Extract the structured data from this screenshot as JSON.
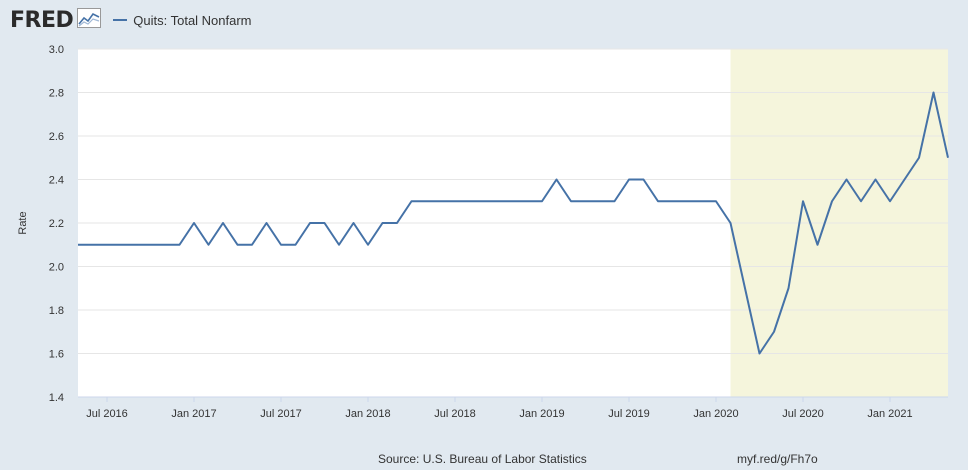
{
  "header": {
    "logo_text": "FRED",
    "logo_icon": "trend-line-icon"
  },
  "colors": {
    "background": "#e1e9f0",
    "plot_background": "#ffffff",
    "recession_shading": "#f5f5dc",
    "series_line": "#4572a7",
    "grid": "#e6e6e6"
  },
  "chart_data": {
    "type": "line",
    "title": "",
    "xlabel": "",
    "ylabel": "Rate",
    "ylim": [
      1.4,
      3.0
    ],
    "y_ticks": [
      "1.4",
      "1.6",
      "1.8",
      "2.0",
      "2.2",
      "2.4",
      "2.6",
      "2.8",
      "3.0"
    ],
    "x_ticks": [
      "Jul 2016",
      "Jan 2017",
      "Jul 2017",
      "Jan 2018",
      "Jul 2018",
      "Jan 2019",
      "Jul 2019",
      "Jan 2020",
      "Jul 2020",
      "Jan 2021"
    ],
    "x_range": [
      "2016-05",
      "2021-05"
    ],
    "grid": "horizontal",
    "recession": {
      "start": "2020-02",
      "end": "2021-05"
    },
    "series": [
      {
        "name": "Quits: Total Nonfarm",
        "x": [
          "2016-05",
          "2016-06",
          "2016-07",
          "2016-08",
          "2016-09",
          "2016-10",
          "2016-11",
          "2016-12",
          "2017-01",
          "2017-02",
          "2017-03",
          "2017-04",
          "2017-05",
          "2017-06",
          "2017-07",
          "2017-08",
          "2017-09",
          "2017-10",
          "2017-11",
          "2017-12",
          "2018-01",
          "2018-02",
          "2018-03",
          "2018-04",
          "2018-05",
          "2018-06",
          "2018-07",
          "2018-08",
          "2018-09",
          "2018-10",
          "2018-11",
          "2018-12",
          "2019-01",
          "2019-02",
          "2019-03",
          "2019-04",
          "2019-05",
          "2019-06",
          "2019-07",
          "2019-08",
          "2019-09",
          "2019-10",
          "2019-11",
          "2019-12",
          "2020-01",
          "2020-02",
          "2020-03",
          "2020-04",
          "2020-05",
          "2020-06",
          "2020-07",
          "2020-08",
          "2020-09",
          "2020-10",
          "2020-11",
          "2020-12",
          "2021-01",
          "2021-02",
          "2021-03",
          "2021-04",
          "2021-05"
        ],
        "values": [
          2.1,
          2.1,
          2.1,
          2.1,
          2.1,
          2.1,
          2.1,
          2.1,
          2.2,
          2.1,
          2.2,
          2.1,
          2.1,
          2.2,
          2.1,
          2.1,
          2.2,
          2.2,
          2.1,
          2.2,
          2.1,
          2.2,
          2.2,
          2.3,
          2.3,
          2.3,
          2.3,
          2.3,
          2.3,
          2.3,
          2.3,
          2.3,
          2.3,
          2.4,
          2.3,
          2.3,
          2.3,
          2.3,
          2.4,
          2.4,
          2.3,
          2.3,
          2.3,
          2.3,
          2.3,
          2.2,
          1.9,
          1.6,
          1.7,
          1.9,
          2.3,
          2.1,
          2.3,
          2.4,
          2.3,
          2.4,
          2.3,
          2.4,
          2.5,
          2.8,
          2.5
        ]
      }
    ]
  },
  "footer": {
    "source": "Source: U.S. Bureau of Labor Statistics",
    "link": "myf.red/g/Fh7o"
  }
}
